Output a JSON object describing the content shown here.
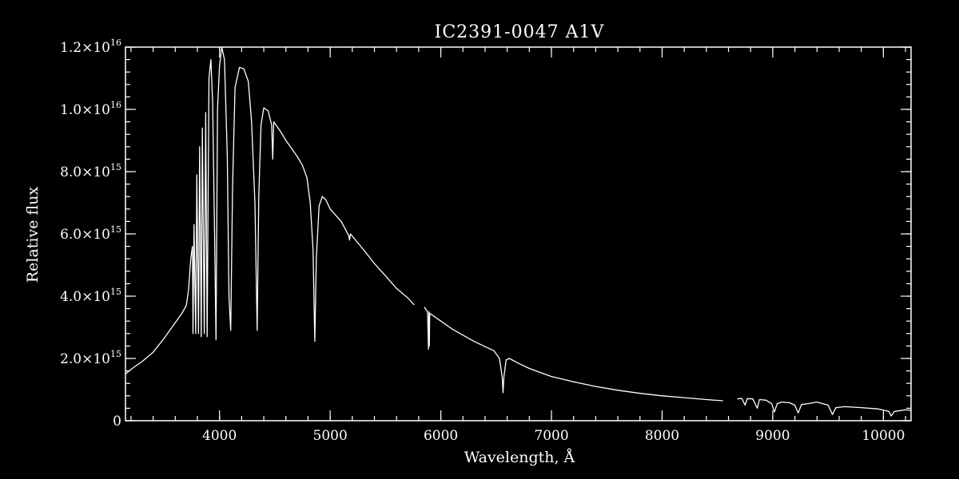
{
  "chart_data": {
    "type": "line",
    "title": "IC2391-0047  A1V",
    "xlabel": "Wavelength, Å",
    "ylabel": "Relative flux",
    "xlim": [
      3150,
      10250
    ],
    "ylim": [
      0,
      1.2e+16
    ],
    "grid": false,
    "legend": "none",
    "x_ticks": [
      4000,
      5000,
      6000,
      7000,
      8000,
      9000,
      10000
    ],
    "x_tick_labels": [
      "4000",
      "5000",
      "6000",
      "7000",
      "8000",
      "9000",
      "10000"
    ],
    "x_minor_step": 200,
    "y_ticks": [
      0,
      2000000000000000.0,
      4000000000000000.0,
      6000000000000000.0,
      8000000000000000.0,
      1e+16,
      1.2e+16
    ],
    "y_tick_labels": [
      {
        "mantissa": "0",
        "exp": ""
      },
      {
        "mantissa": "2.0×10",
        "exp": "15"
      },
      {
        "mantissa": "4.0×10",
        "exp": "15"
      },
      {
        "mantissa": "6.0×10",
        "exp": "15"
      },
      {
        "mantissa": "8.0×10",
        "exp": "15"
      },
      {
        "mantissa": "1.0×10",
        "exp": "16"
      },
      {
        "mantissa": "1.2×10",
        "exp": "16"
      }
    ],
    "y_minor_step": 400000000000000.0,
    "series": [
      {
        "color": "#ffffff",
        "segments": [
          [
            [
              3150,
              1500000000000000.0
            ],
            [
              3200,
              1650000000000000.0
            ],
            [
              3300,
              1900000000000000.0
            ],
            [
              3400,
              2200000000000000.0
            ],
            [
              3500,
              2650000000000000.0
            ],
            [
              3600,
              3150000000000000.0
            ],
            [
              3660,
              3450000000000000.0
            ],
            [
              3700,
              3700000000000000.0
            ],
            [
              3720,
              4200000000000000.0
            ],
            [
              3740,
              5200000000000000.0
            ],
            [
              3755,
              5600000000000000.0
            ],
            [
              3760,
              2800000000000000.0
            ],
            [
              3770,
              6300000000000000.0
            ],
            [
              3785,
              2800000000000000.0
            ],
            [
              3795,
              7900000000000000.0
            ],
            [
              3810,
              2800000000000000.0
            ],
            [
              3820,
              8800000000000000.0
            ],
            [
              3835,
              2700000000000000.0
            ],
            [
              3845,
              9400000000000000.0
            ],
            [
              3862,
              2800000000000000.0
            ],
            [
              3875,
              9900000000000000.0
            ],
            [
              3888,
              2700000000000000.0
            ],
            [
              3905,
              1.1e+16
            ],
            [
              3922,
              1.16e+16
            ],
            [
              3938,
              1.02e+16
            ],
            [
              3955,
              6000000000000000.0
            ],
            [
              3968,
              2600000000000000.0
            ],
            [
              3982,
              1e+16
            ],
            [
              4000,
              1.14e+16
            ],
            [
              4020,
              1.2e+16
            ],
            [
              4045,
              1.16e+16
            ],
            [
              4070,
              8500000000000000.0
            ],
            [
              4085,
              4000000000000000.0
            ],
            [
              4101,
              2900000000000000.0
            ],
            [
              4118,
              7500000000000000.0
            ],
            [
              4140,
              1.07e+16
            ],
            [
              4180,
              1.135e+16
            ],
            [
              4220,
              1.13e+16
            ],
            [
              4260,
              1.09e+16
            ],
            [
              4290,
              9600000000000000.0
            ],
            [
              4320,
              7000000000000000.0
            ],
            [
              4340,
              2900000000000000.0
            ],
            [
              4355,
              7200000000000000.0
            ],
            [
              4375,
              9500000000000000.0
            ],
            [
              4400,
              1.005e+16
            ],
            [
              4440,
              9950000000000000.0
            ],
            [
              4471,
              9500000000000000.0
            ],
            [
              4481,
              8400000000000000.0
            ],
            [
              4490,
              9600000000000000.0
            ],
            [
              4550,
              9300000000000000.0
            ],
            [
              4600,
              9000000000000000.0
            ],
            [
              4650,
              8750000000000000.0
            ],
            [
              4700,
              8500000000000000.0
            ],
            [
              4750,
              8200000000000000.0
            ],
            [
              4790,
              7800000000000000.0
            ],
            [
              4820,
              7000000000000000.0
            ],
            [
              4845,
              5500000000000000.0
            ],
            [
              4861,
              2550000000000000.0
            ],
            [
              4875,
              5200000000000000.0
            ],
            [
              4900,
              6900000000000000.0
            ],
            [
              4930,
              7200000000000000.0
            ],
            [
              4960,
              7100000000000000.0
            ],
            [
              5000,
              6800000000000000.0
            ],
            [
              5100,
              6400000000000000.0
            ],
            [
              5167,
              5950000000000000.0
            ],
            [
              5175,
              5800000000000000.0
            ],
            [
              5183,
              6000000000000000.0
            ],
            [
              5300,
              5500000000000000.0
            ],
            [
              5400,
              5050000000000000.0
            ],
            [
              5500,
              4650000000000000.0
            ],
            [
              5600,
              4250000000000000.0
            ],
            [
              5700,
              3950000000000000.0
            ],
            [
              5760,
              3720000000000000.0
            ]
          ],
          [
            [
              5850,
              3650000000000000.0
            ],
            [
              5880,
              3500000000000000.0
            ],
            [
              5889,
              2300000000000000.0
            ],
            [
              5893,
              3500000000000000.0
            ],
            [
              5896,
              2400000000000000.0
            ],
            [
              5900,
              3450000000000000.0
            ],
            [
              6000,
              3200000000000000.0
            ],
            [
              6100,
              2950000000000000.0
            ],
            [
              6200,
              2750000000000000.0
            ],
            [
              6300,
              2550000000000000.0
            ],
            [
              6400,
              2380000000000000.0
            ],
            [
              6480,
              2250000000000000.0
            ],
            [
              6530,
              2000000000000000.0
            ],
            [
              6555,
              1400000000000000.0
            ],
            [
              6563,
              900000000000000.0
            ],
            [
              6570,
              1400000000000000.0
            ],
            [
              6590,
              1950000000000000.0
            ],
            [
              6620,
              2000000000000000.0
            ],
            [
              6700,
              1850000000000000.0
            ],
            [
              6800,
              1680000000000000.0
            ],
            [
              6900,
              1550000000000000.0
            ],
            [
              7000,
              1420000000000000.0
            ],
            [
              7200,
              1250000000000000.0
            ],
            [
              7400,
              1100000000000000.0
            ],
            [
              7600,
              980000000000000.0
            ],
            [
              7800,
              880000000000000.0
            ],
            [
              8000,
              800000000000000.0
            ],
            [
              8200,
              740000000000000.0
            ],
            [
              8400,
              680000000000000.0
            ],
            [
              8550,
              640000000000000.0
            ]
          ],
          [
            [
              8680,
              700000000000000.0
            ],
            [
              8720,
              720000000000000.0
            ],
            [
              8750,
              500000000000000.0
            ],
            [
              8770,
              710000000000000.0
            ],
            [
              8820,
              700000000000000.0
            ],
            [
              8860,
              400000000000000.0
            ],
            [
              8880,
              680000000000000.0
            ],
            [
              8940,
              660000000000000.0
            ],
            [
              8990,
              550000000000000.0
            ],
            [
              9015,
              280000000000000.0
            ],
            [
              9040,
              550000000000000.0
            ],
            [
              9080,
              600000000000000.0
            ],
            [
              9150,
              580000000000000.0
            ],
            [
              9200,
              500000000000000.0
            ],
            [
              9230,
              250000000000000.0
            ],
            [
              9260,
              520000000000000.0
            ],
            [
              9320,
              550000000000000.0
            ],
            [
              9400,
              600000000000000.0
            ],
            [
              9500,
              500000000000000.0
            ],
            [
              9540,
              200000000000000.0
            ],
            [
              9570,
              420000000000000.0
            ],
            [
              9650,
              450000000000000.0
            ],
            [
              9800,
              420000000000000.0
            ],
            [
              9950,
              380000000000000.0
            ],
            [
              10050,
              300000000000000.0
            ],
            [
              10070,
              150000000000000.0
            ],
            [
              10100,
              300000000000000.0
            ],
            [
              10200,
              350000000000000.0
            ],
            [
              10250,
              330000000000000.0
            ]
          ]
        ]
      }
    ]
  }
}
